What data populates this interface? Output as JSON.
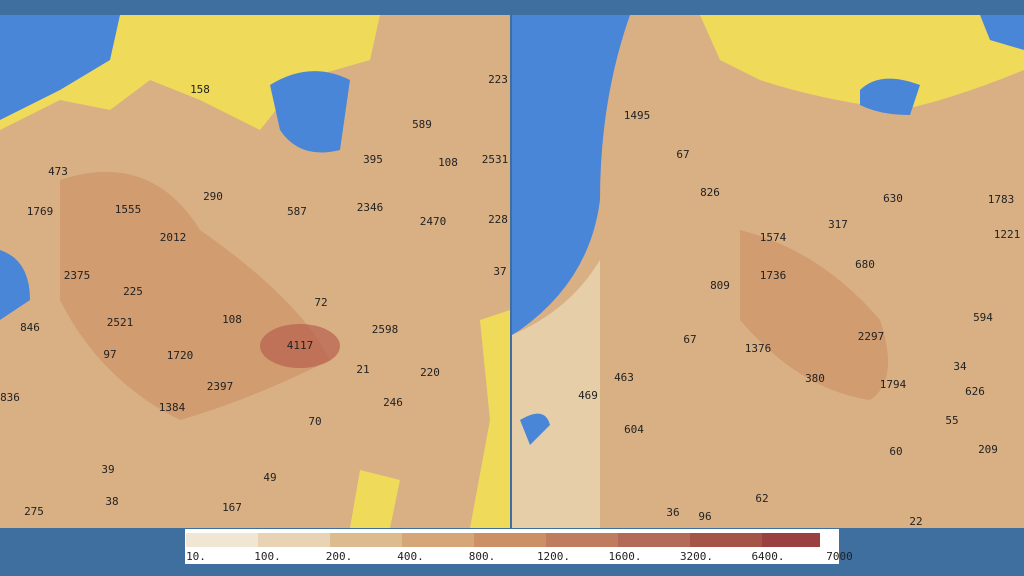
{
  "left_map": {
    "labels": [
      158,
      223,
      589,
      473,
      108,
      2531,
      395,
      290,
      1769,
      1555,
      587,
      2346,
      2470,
      228,
      2012,
      2375,
      37,
      225,
      72,
      2598,
      2521,
      108,
      846,
      4117,
      97,
      1720,
      21,
      220,
      2397,
      836,
      246,
      1384,
      70,
      39,
      49,
      38,
      167,
      275
    ]
  },
  "right_map": {
    "labels": [
      1495,
      67,
      1783,
      826,
      630,
      1221,
      317,
      1574,
      680,
      1736,
      809,
      594,
      2297,
      67,
      1376,
      34,
      463,
      380,
      1794,
      626,
      469,
      55,
      604,
      209,
      60,
      36,
      96,
      62,
      22
    ]
  },
  "legend": {
    "labels": [
      "10.",
      "100.",
      "200.",
      "400.",
      "800.",
      "1200.",
      "1600.",
      "3200.",
      "6400.",
      "7000"
    ]
  }
}
